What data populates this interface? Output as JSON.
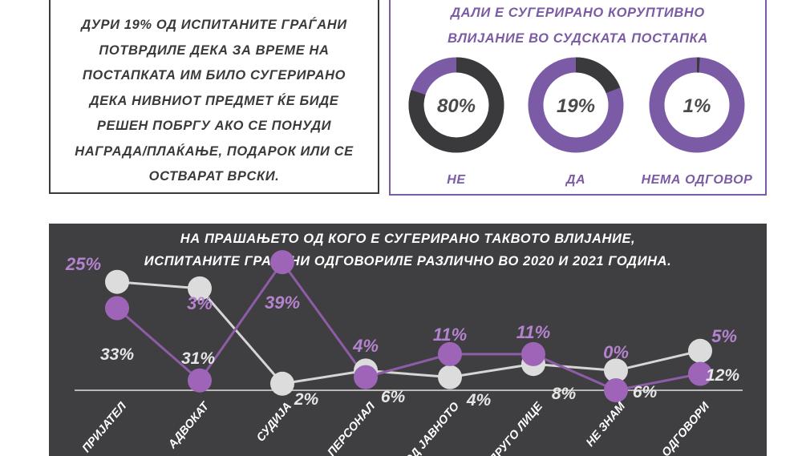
{
  "info_box": {
    "text": "ДУРИ 19% ОД ИСПИТАНИТЕ ГРАЃАНИ ПОТВРДИЛЕ ДЕКА ЗА ВРЕМЕ НА ПОСТАПКАТА ИМ БИЛО СУГЕРИРАНО ДЕКА НИВНИОТ ПРЕДМЕТ ЌЕ БИДЕ РЕШЕН ПОБРГУ АКО СЕ ПОНУДИ НАГРАДА/ПЛАЌАЊЕ, ПОДАРОК ИЛИ СЕ ОСТВАРАТ ВРСКИ."
  },
  "donut_panel": {
    "title_line1": "ДАЛИ Е СУГЕРИРАНО КОРУПТИВНО",
    "title_line2": "ВЛИЈАНИЕ ВО СУДСКАТА ПОСТАПКА"
  },
  "chart_data": [
    {
      "type": "pie",
      "categories": [
        "НЕ",
        "ДА",
        "НЕМА ОДГОВОР"
      ],
      "values": [
        80,
        19,
        1
      ],
      "labels": [
        "80%",
        "19%",
        "1%"
      ],
      "colors": {
        "highlight": "#3a3a3c",
        "rest": "#7b5aa6"
      }
    },
    {
      "type": "line",
      "title_line1": "НА ПРАШАЊЕТО ОД КОГО Е СУГЕРИРАНО ТАКВОТО ВЛИЈАНИЕ,",
      "title_line2": "ИСПИТАНИТЕ ГРАЃАНИ ОДГОВОРИЛЕ РАЗЛИЧНО ВО 2020 И 2021 ГОДИНА.",
      "categories": [
        "ПРИЈАТЕЛ",
        "АДВОКАТ",
        "СУДИЈА",
        "ПЕРСОНАЛ",
        "ОД ЈАВНОТО",
        "ДРУГО ЛИЦЕ",
        "НЕ ЗНАМ",
        "ОДГОВОРИ"
      ],
      "series": [
        {
          "values": [
            25,
            3,
            39,
            4,
            11,
            11,
            0,
            5
          ],
          "labels": [
            "25%",
            "3%",
            "39%",
            "4%",
            "11%",
            "11%",
            "0%",
            "5%"
          ],
          "color": "#8e5ca7"
        },
        {
          "values": [
            33,
            31,
            2,
            6,
            4,
            8,
            6,
            12
          ],
          "labels": [
            "33%",
            "31%",
            "2%",
            "6%",
            "4%",
            "8%",
            "6%",
            "12%"
          ],
          "color": "#d6d6d6"
        }
      ],
      "grid": false
    }
  ]
}
